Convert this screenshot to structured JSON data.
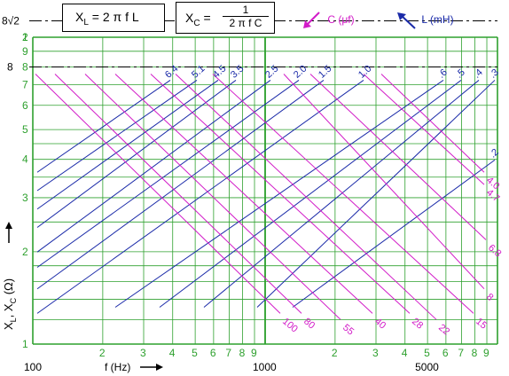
{
  "formulas": {
    "xl": {
      "lhs": "X",
      "sub": "L",
      "rhs": "= 2 π f L"
    },
    "xc": {
      "lhs": "X",
      "sub": "C",
      "eq": "=",
      "num": "1",
      "den": "2 π f C"
    }
  },
  "legend": {
    "c": {
      "text": "C  (μf)",
      "color": "#d21cc8"
    },
    "l": {
      "text": "L  (mH)",
      "color": "#1a2aa8"
    }
  },
  "axes": {
    "xlabel": "f (Hz)",
    "ylabel": "X",
    "ylabel_sub1": "L",
    "ylabel_sep": ", X",
    "ylabel_sub2": "C",
    "ylabel_unit": "(Ω)",
    "x_major_labels": [
      "100",
      "1000",
      "5000"
    ],
    "x_minor_labels": [
      "2",
      "3",
      "4",
      "5",
      "6",
      "7",
      "8",
      "9",
      "2",
      "3",
      "4",
      "5",
      "6",
      "7",
      "8",
      "9"
    ],
    "y_labels": [
      "1",
      "2",
      "3",
      "4",
      "5",
      "6",
      "7",
      "8",
      "9",
      "1",
      "2"
    ],
    "y_marker_sqrt": "8√2",
    "y_marker": "8"
  },
  "colors": {
    "grid": "#2ea02e",
    "inductance": "#1a2aa8",
    "capacitance": "#d21cc8",
    "axis_text": "#000000"
  },
  "chart_data": {
    "type": "line",
    "xscale": "log",
    "yscale": "log",
    "x_range_hz": [
      100,
      10000
    ],
    "y_range_decades": [
      0,
      1
    ],
    "inductance_mH": [
      "6.4",
      "5.1",
      "4.5",
      "3.5",
      "2.5",
      "2.0",
      "1.5",
      "1.0",
      ".6",
      ".5",
      ".4",
      ".3",
      ".2"
    ],
    "capacitance_uF": [
      "100",
      "80",
      "55",
      "40",
      "28",
      "22",
      "15",
      "8",
      "6.8",
      "4.7",
      "4.0"
    ],
    "reference_lines": [
      "8√2",
      "8"
    ]
  }
}
